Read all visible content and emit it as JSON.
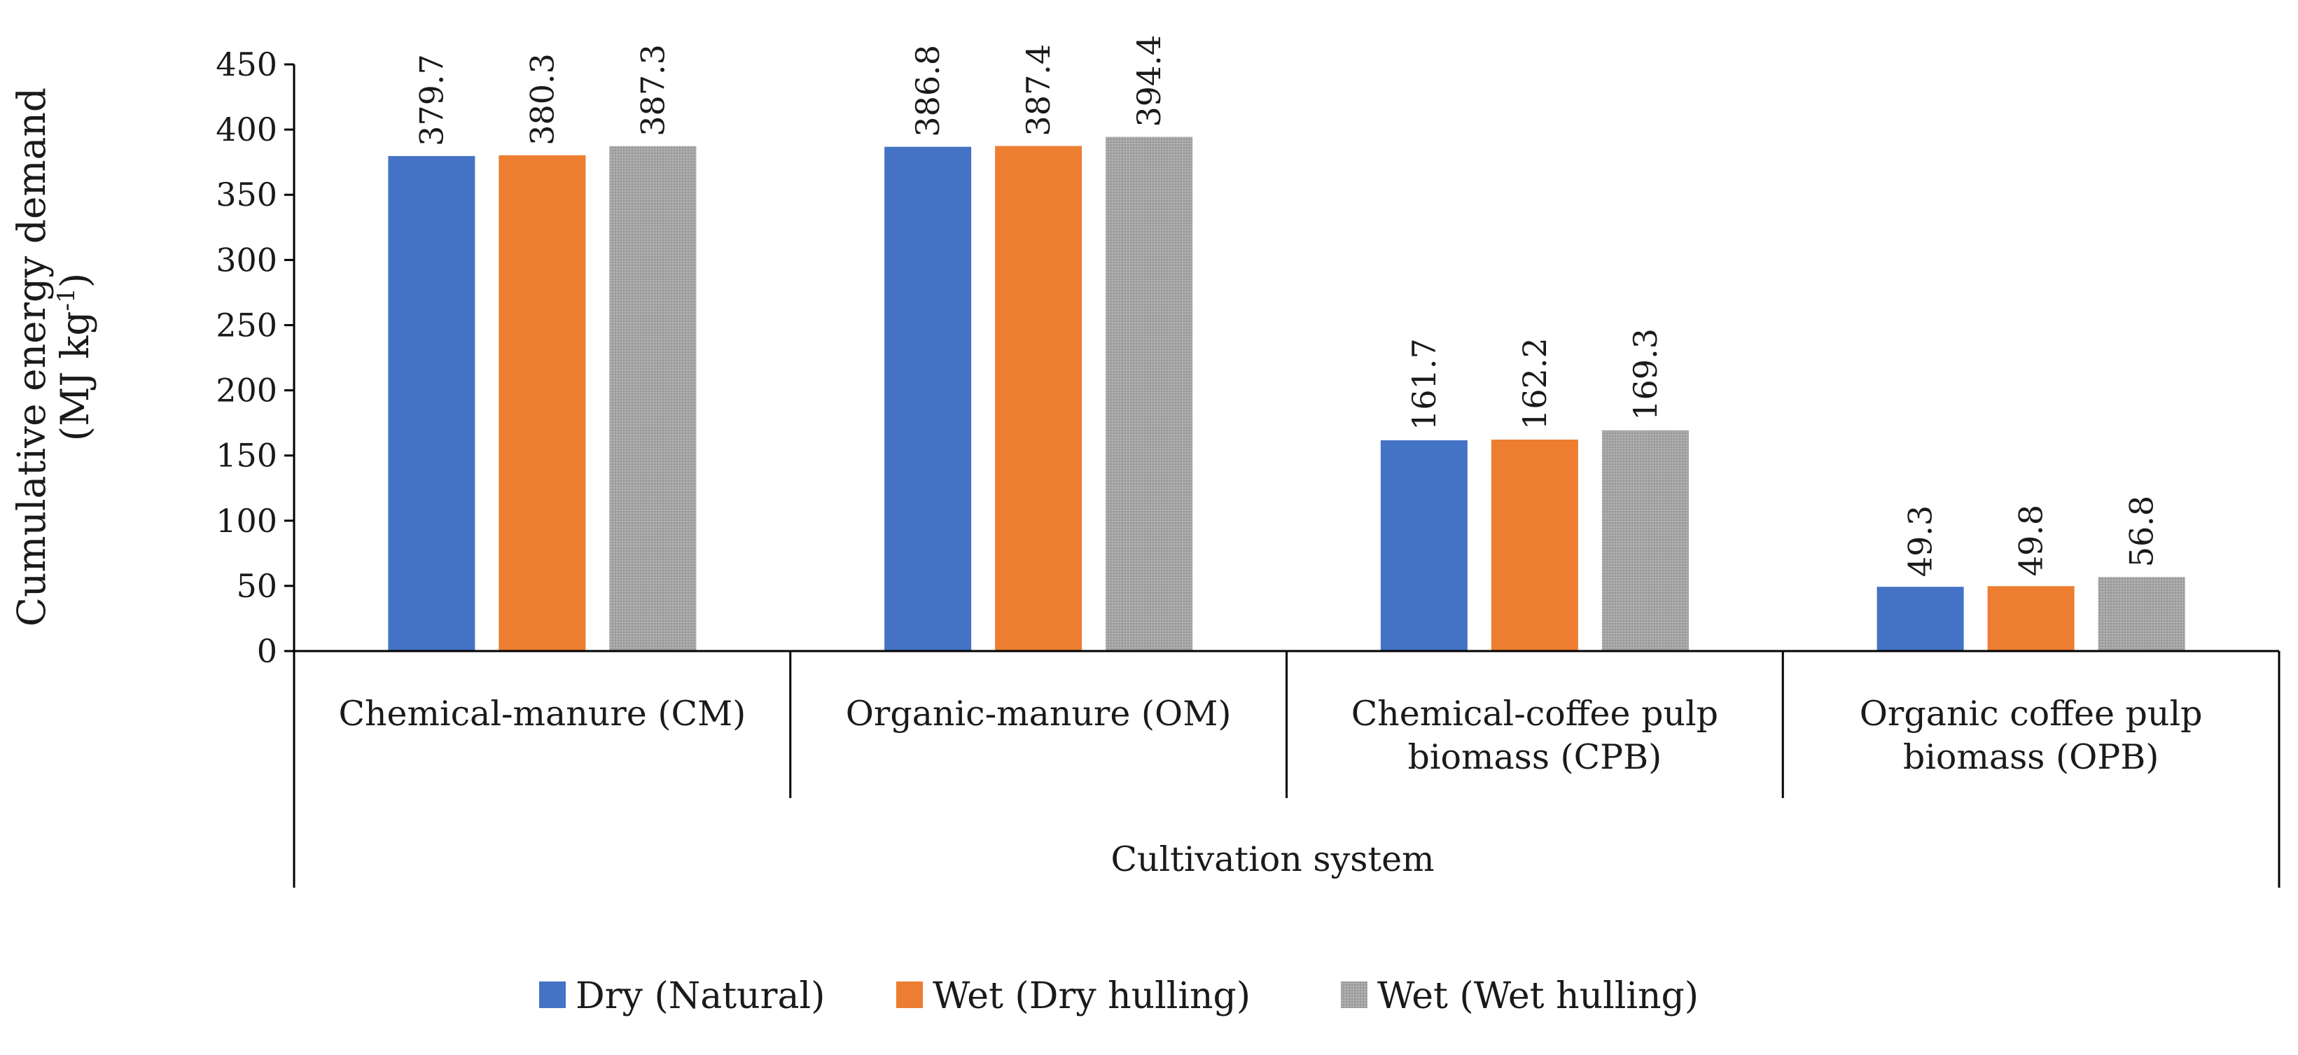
{
  "chart_data": {
    "type": "bar",
    "title": "",
    "ylabel_line1": "Cumulative energy demand",
    "ylabel_line2_prefix": "(MJ kg",
    "ylabel_line2_sup": "-1",
    "ylabel_line2_suffix": ")",
    "xlabel": "Cultivation system",
    "ylim": [
      0,
      450
    ],
    "yticks": [
      "0",
      "50",
      "100",
      "150",
      "200",
      "250",
      "300",
      "350",
      "400",
      "450"
    ],
    "grid": false,
    "legend_position": "bottom",
    "categories": [
      [
        "Chemical-manure (CM)"
      ],
      [
        "Organic-manure (OM)"
      ],
      [
        "Chemical-coffee pulp",
        "biomass (CPB)"
      ],
      [
        "Organic coffee pulp",
        "biomass (OPB)"
      ]
    ],
    "series": [
      {
        "name": "Dry (Natural)",
        "color": "#4472C4",
        "values": [
          379.7,
          386.8,
          161.7,
          49.3
        ],
        "labels": [
          "379.7",
          "386.8",
          "161.7",
          "49.3"
        ]
      },
      {
        "name": "Wet (Dry hulling)",
        "color": "#ED7D31",
        "values": [
          380.3,
          387.4,
          162.2,
          49.8
        ],
        "labels": [
          "380.3",
          "387.4",
          "162.2",
          "49.8"
        ]
      },
      {
        "name": "Wet (Wet hulling)",
        "color": "#A5A5A5",
        "values": [
          387.3,
          394.4,
          169.3,
          56.8
        ],
        "labels": [
          "387.3",
          "394.4",
          "169.3",
          "56.8"
        ]
      }
    ]
  }
}
